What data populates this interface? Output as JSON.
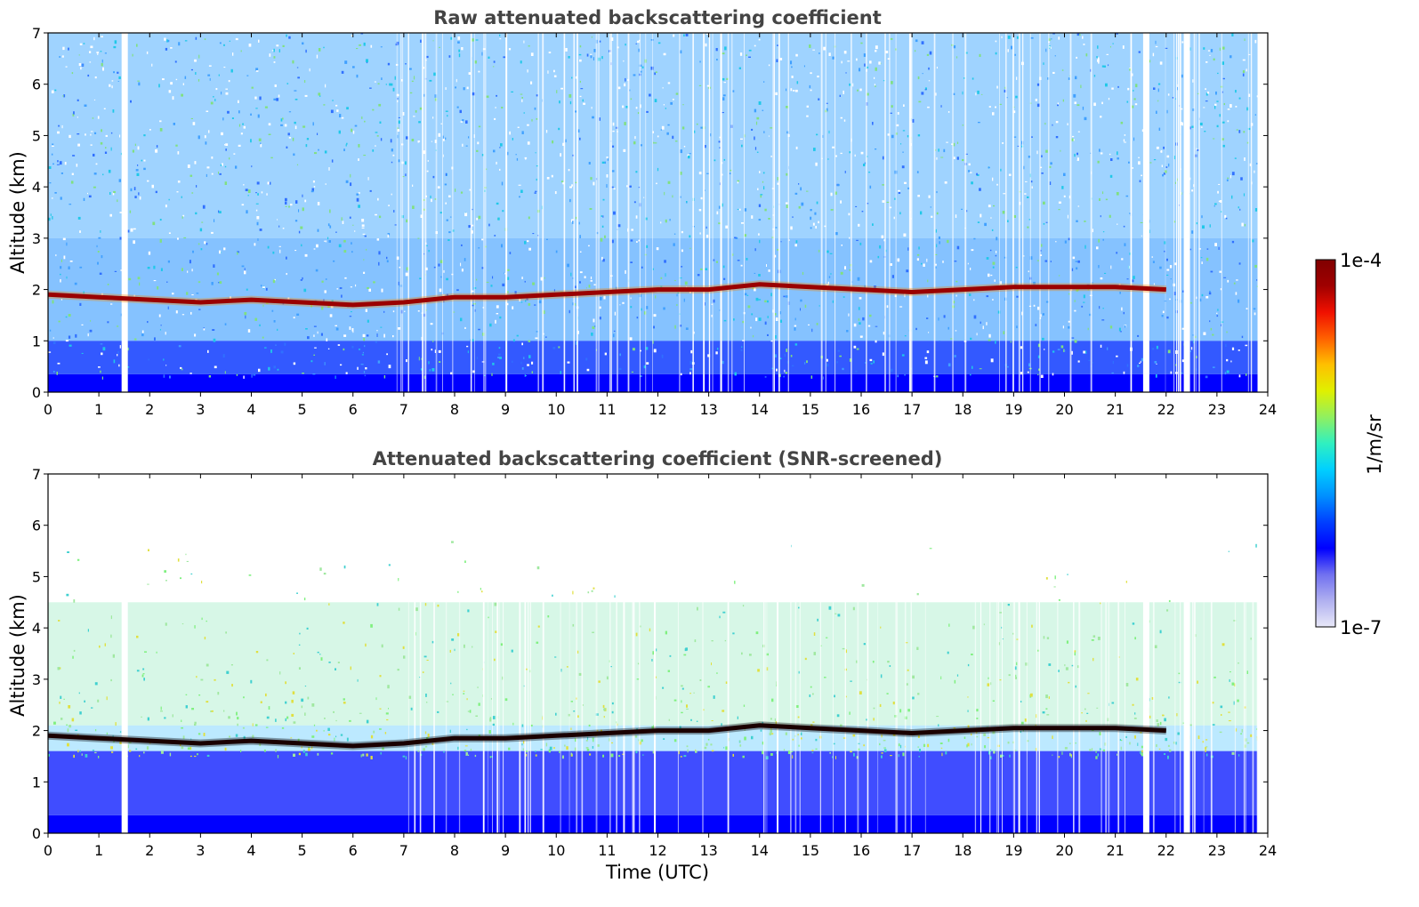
{
  "chart_data": [
    {
      "type": "heatmap",
      "title": "Raw attenuated backscattering coefficient",
      "xlabel": "",
      "ylabel": "Altitude (km)",
      "xlim": [
        0,
        24
      ],
      "ylim": [
        0,
        7
      ],
      "xticks": [
        "0",
        "1",
        "2",
        "3",
        "4",
        "5",
        "6",
        "7",
        "8",
        "9",
        "10",
        "11",
        "12",
        "13",
        "14",
        "15",
        "16",
        "17",
        "18",
        "19",
        "20",
        "21",
        "22",
        "23",
        "24"
      ],
      "yticks": [
        "0",
        "1",
        "2",
        "3",
        "4",
        "5",
        "6",
        "7"
      ],
      "cloud_layer": {
        "time": [
          0,
          1,
          2,
          3,
          4,
          5,
          6,
          7,
          8,
          9,
          10,
          11,
          12,
          13,
          14,
          15,
          16,
          17,
          18,
          19,
          20,
          21,
          22
        ],
        "altitude_km": [
          1.9,
          1.85,
          1.8,
          1.75,
          1.8,
          1.75,
          1.7,
          1.75,
          1.85,
          1.85,
          1.9,
          1.95,
          2.0,
          2.0,
          2.1,
          2.05,
          2.0,
          1.95,
          2.0,
          2.05,
          2.05,
          2.05,
          2.0
        ]
      },
      "data_gaps_utc": [
        1.5,
        21.6,
        22.4
      ]
    },
    {
      "type": "heatmap",
      "title": "Attenuated backscattering coefficient (SNR-screened)",
      "xlabel": "Time (UTC)",
      "ylabel": "Altitude (km)",
      "xlim": [
        0,
        24
      ],
      "ylim": [
        0,
        7
      ],
      "xticks": [
        "0",
        "1",
        "2",
        "3",
        "4",
        "5",
        "6",
        "7",
        "8",
        "9",
        "10",
        "11",
        "12",
        "13",
        "14",
        "15",
        "16",
        "17",
        "18",
        "19",
        "20",
        "21",
        "22",
        "23",
        "24"
      ],
      "yticks": [
        "0",
        "1",
        "2",
        "3",
        "4",
        "5",
        "6",
        "7"
      ],
      "cloud_layer": {
        "time": [
          0,
          1,
          2,
          3,
          4,
          5,
          6,
          7,
          8,
          9,
          10,
          11,
          12,
          13,
          14,
          15,
          16,
          17,
          18,
          19,
          20,
          21,
          22
        ],
        "altitude_km": [
          1.9,
          1.85,
          1.8,
          1.75,
          1.8,
          1.75,
          1.7,
          1.75,
          1.85,
          1.85,
          1.9,
          1.95,
          2.0,
          2.0,
          2.1,
          2.05,
          2.0,
          1.95,
          2.0,
          2.05,
          2.05,
          2.05,
          2.0
        ]
      }
    }
  ],
  "colorbar": {
    "label": "1/m/sr",
    "max_label": "1e-4",
    "min_label": "1e-7",
    "colormap": [
      "#e8e8f8",
      "#b0b0f0",
      "#7070f0",
      "#0000ff",
      "#0040ff",
      "#0090ff",
      "#00d0ff",
      "#30f0c0",
      "#90f060",
      "#e0f000",
      "#ffc000",
      "#ff6000",
      "#f01000",
      "#a00000",
      "#800000"
    ]
  }
}
